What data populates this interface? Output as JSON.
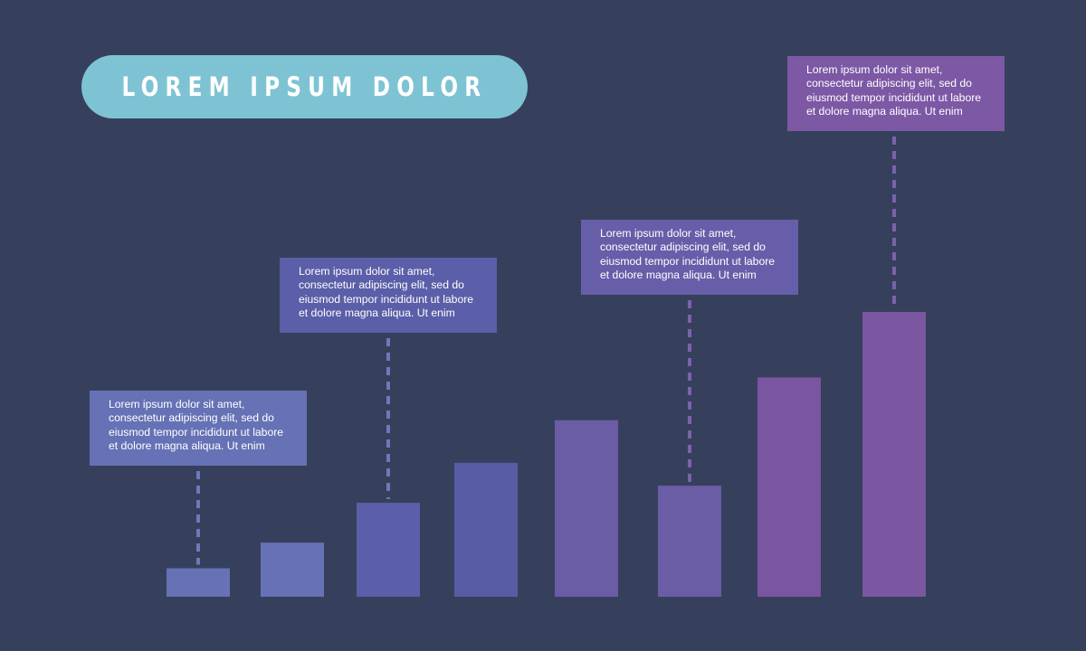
{
  "title": "LOREM IPSUM DOLOR",
  "colors": {
    "background": "#36405d",
    "title_pill": "#7ec3d3",
    "connector": "#6f78b8"
  },
  "chart_data": {
    "type": "bar",
    "title": "LOREM IPSUM DOLOR",
    "xlabel": "",
    "ylabel": "",
    "grid": false,
    "ylim": [
      0,
      100
    ],
    "values": [
      10,
      19,
      33,
      47,
      62,
      39,
      77,
      100
    ],
    "bar_colors": [
      "#6672b5",
      "#6672b5",
      "#5b5ea8",
      "#575ca5",
      "#6a5ca5",
      "#6a5ca5",
      "#7a55a0",
      "#7b56a1"
    ],
    "annotations": [
      {
        "bar_index": 0,
        "text": "Lorem ipsum dolor sit amet, consectetur adipiscing elit, sed do eiusmod tempor incididunt ut labore et dolore magna aliqua. Ut enim",
        "lines": [
          "Lorem ipsum dolor sit amet,",
          "consectetur adipiscing elit, sed do",
          "eiusmod tempor incididunt ut labore",
          "et dolore magna aliqua. Ut enim"
        ]
      },
      {
        "bar_index": 2,
        "text": "Lorem ipsum dolor sit amet, consectetur adipiscing elit, sed do eiusmod tempor incididunt ut labore et dolore magna aliqua. Ut enim",
        "lines": [
          "Lorem ipsum dolor sit amet,",
          "consectetur adipiscing elit, sed do",
          "eiusmod tempor incididunt ut labore",
          "et dolore magna aliqua. Ut enim"
        ]
      },
      {
        "bar_index": 5,
        "text": "Lorem ipsum dolor sit amet, consectetur adipiscing elit, sed do eiusmod tempor incididunt ut labore et dolore magna aliqua. Ut enim",
        "lines": [
          "Lorem ipsum dolor sit amet,",
          "consectetur adipiscing elit, sed do",
          "eiusmod tempor incididunt ut labore",
          "et dolore magna aliqua. Ut enim"
        ]
      },
      {
        "bar_index": 7,
        "text": "Lorem ipsum dolor sit amet, consectetur adipiscing elit, sed do eiusmod tempor incididunt ut labore et dolore magna aliqua. Ut enim",
        "lines": [
          "Lorem ipsum dolor sit amet,",
          "consectetur adipiscing elit, sed do",
          "eiusmod tempor incididunt ut labore",
          "et dolore magna aliqua. Ut enim"
        ]
      }
    ]
  }
}
